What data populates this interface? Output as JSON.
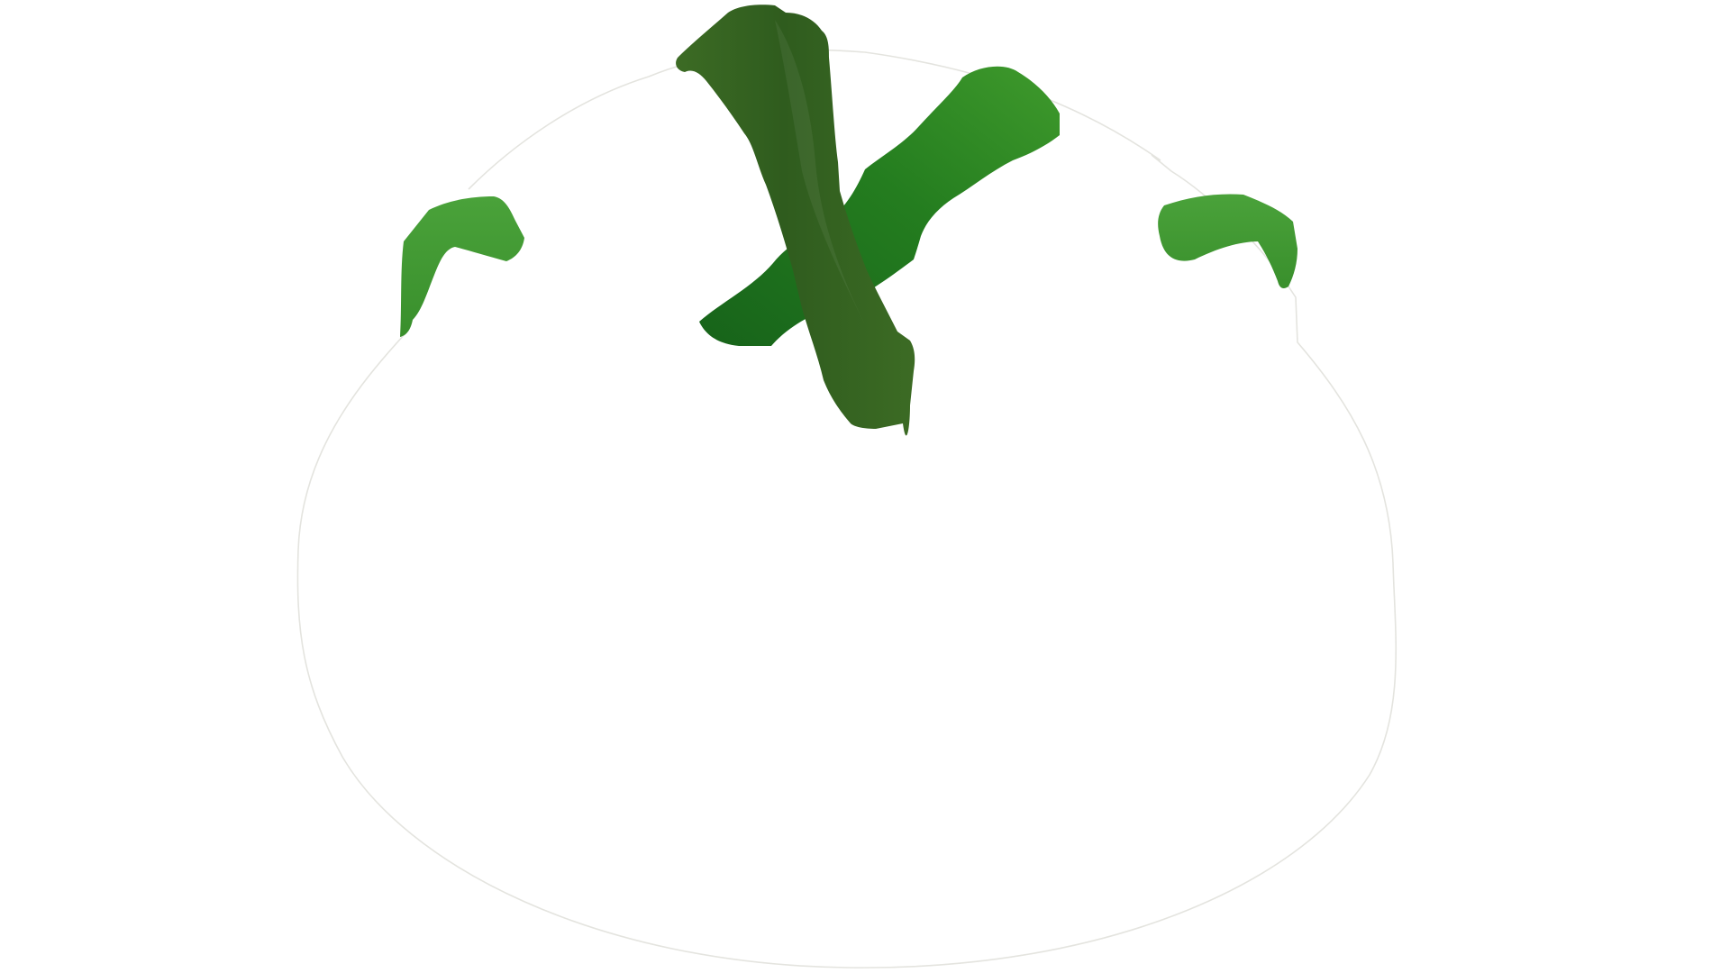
{
  "scene": {
    "subject": "tomato-outline-with-green-stem",
    "background_color": "#ffffff",
    "outline_color": "#e4e4df",
    "colors": {
      "stem_dark": "#2f5c1e",
      "stem_mid": "#3c6b24",
      "leaf_dark": "#17631a",
      "leaf_mid": "#247d1f",
      "leaf_light": "#3f9a2c",
      "sepal_light": "#4aa23a",
      "sepal_mid": "#398f2c"
    }
  }
}
